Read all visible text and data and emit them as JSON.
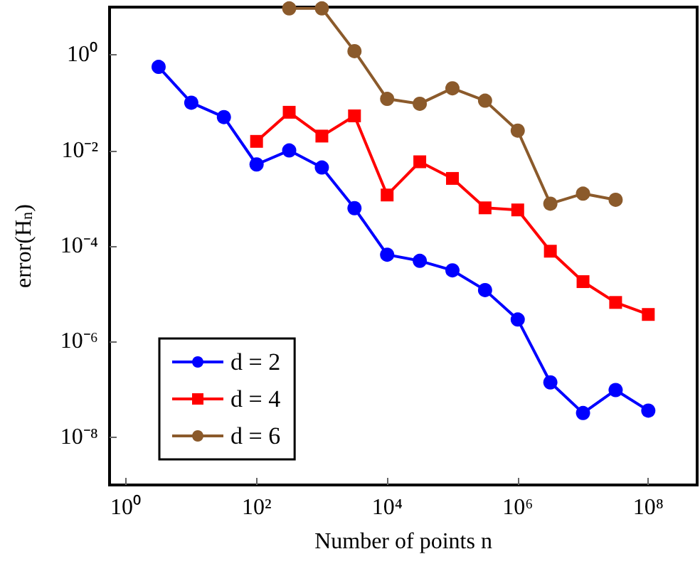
{
  "chart_data": {
    "type": "line",
    "xlabel": "Number of points n",
    "ylabel": "error(H$_{n}$)",
    "log": "xy",
    "grid": false,
    "legend": "bottom left",
    "xlim": [
      0.56,
      560000000
    ],
    "ylim": [
      1e-09,
      10
    ],
    "xticks": [
      {
        "value": 1,
        "label": "10⁰"
      },
      {
        "value": 100,
        "label": "10²"
      },
      {
        "value": 10000,
        "label": "10⁴"
      },
      {
        "value": 1000000,
        "label": "10⁶"
      },
      {
        "value": 100000000,
        "label": "10⁸"
      }
    ],
    "yticks": [
      {
        "value": 1e-08,
        "label": "10⁻⁸"
      },
      {
        "value": 1e-06,
        "label": "10⁻⁶"
      },
      {
        "value": 0.0001,
        "label": "10⁻⁴"
      },
      {
        "value": 0.01,
        "label": "10⁻²"
      },
      {
        "value": 1,
        "label": "10⁰"
      }
    ],
    "series": [
      {
        "name": "d = 2",
        "color": "#0000ff",
        "marker": "circle",
        "x": [
          3.16,
          10,
          31.6,
          100,
          316,
          1000,
          3160,
          10000,
          31600,
          100000,
          316000,
          1000000,
          3160000,
          10000000,
          31600000,
          100000000
        ],
        "values": [
          0.56,
          0.1,
          0.05,
          0.0051,
          0.01,
          0.0044,
          0.00062,
          6.6e-05,
          4.9e-05,
          3.1e-05,
          1.2e-05,
          2.9e-06,
          1.4e-07,
          3.2e-08,
          9.7e-08,
          3.6e-08
        ]
      },
      {
        "name": "d = 4",
        "color": "#ff0000",
        "marker": "square",
        "x": [
          100,
          316,
          1000,
          3160,
          10000,
          31600,
          100000,
          316000,
          1000000,
          3160000,
          10000000,
          31600000,
          100000000
        ],
        "values": [
          0.0155,
          0.063,
          0.02,
          0.053,
          0.00117,
          0.0058,
          0.0026,
          0.00063,
          0.00057,
          7.8e-05,
          1.8e-05,
          6.6e-06,
          3.7e-06
        ]
      },
      {
        "name": "d = 6",
        "color": "#8b5a2b",
        "marker": "circle",
        "x": [
          316,
          1000,
          3160,
          10000,
          31600,
          100000,
          316000,
          1000000,
          3160000,
          10000000,
          31600000
        ],
        "values": [
          9.4,
          9.4,
          1.2,
          0.12,
          0.095,
          0.2,
          0.11,
          0.026,
          0.00077,
          0.00125,
          0.00093
        ]
      }
    ]
  }
}
